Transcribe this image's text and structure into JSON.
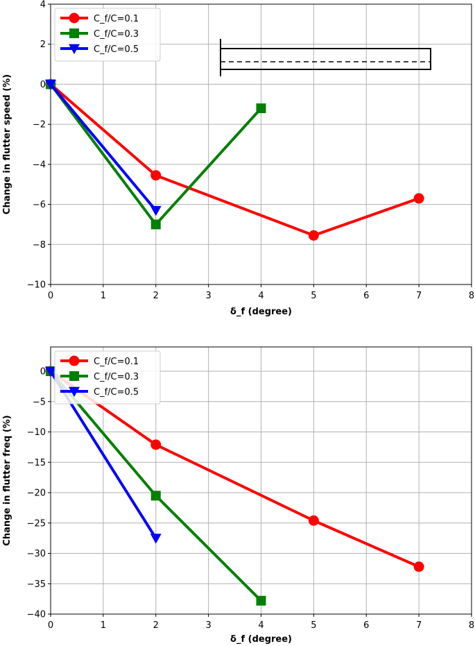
{
  "chart_data": [
    {
      "type": "line",
      "xlabel": "δ_f (degree)",
      "ylabel": "Change in flutter speed (%)",
      "xlim": [
        0,
        8
      ],
      "ylim": [
        -10,
        4
      ],
      "xticks": [
        0,
        1,
        2,
        3,
        4,
        5,
        6,
        7,
        8
      ],
      "yticks": [
        4,
        2,
        0,
        -2,
        -4,
        -6,
        -8,
        -10
      ],
      "grid": true,
      "legend_position": "top-left",
      "inset": "flap section schematic",
      "series": [
        {
          "name": "C_f/C=0.1",
          "color": "#ff0000",
          "marker": "circle",
          "x": [
            0,
            2,
            5,
            7
          ],
          "y": [
            0,
            -4.55,
            -7.55,
            -5.7
          ]
        },
        {
          "name": "C_f/C=0.3",
          "color": "#008000",
          "marker": "square",
          "x": [
            0,
            2,
            4
          ],
          "y": [
            0,
            -7.0,
            -1.2
          ]
        },
        {
          "name": "C_f/C=0.5",
          "color": "#0000ff",
          "marker": "triangle-down",
          "x": [
            0,
            2
          ],
          "y": [
            0,
            -6.3
          ]
        }
      ]
    },
    {
      "type": "line",
      "xlabel": "δ_f (degree)",
      "ylabel": "Change in flutter freq (%)",
      "xlim": [
        0,
        8
      ],
      "ylim": [
        -40,
        4
      ],
      "xticks": [
        0,
        1,
        2,
        3,
        4,
        5,
        6,
        7,
        8
      ],
      "yticks": [
        0,
        -5,
        -10,
        -15,
        -20,
        -25,
        -30,
        -35,
        -40
      ],
      "grid": true,
      "legend_position": "top-left",
      "series": [
        {
          "name": "C_f/C=0.1",
          "color": "#ff0000",
          "marker": "circle",
          "x": [
            0,
            2,
            5,
            7
          ],
          "y": [
            0,
            -12.1,
            -24.6,
            -32.2
          ]
        },
        {
          "name": "C_f/C=0.3",
          "color": "#008000",
          "marker": "square",
          "x": [
            0,
            2,
            4
          ],
          "y": [
            0,
            -20.5,
            -37.8
          ]
        },
        {
          "name": "C_f/C=0.5",
          "color": "#0000ff",
          "marker": "triangle-down",
          "x": [
            0,
            2
          ],
          "y": [
            0,
            -27.5
          ]
        }
      ]
    }
  ]
}
